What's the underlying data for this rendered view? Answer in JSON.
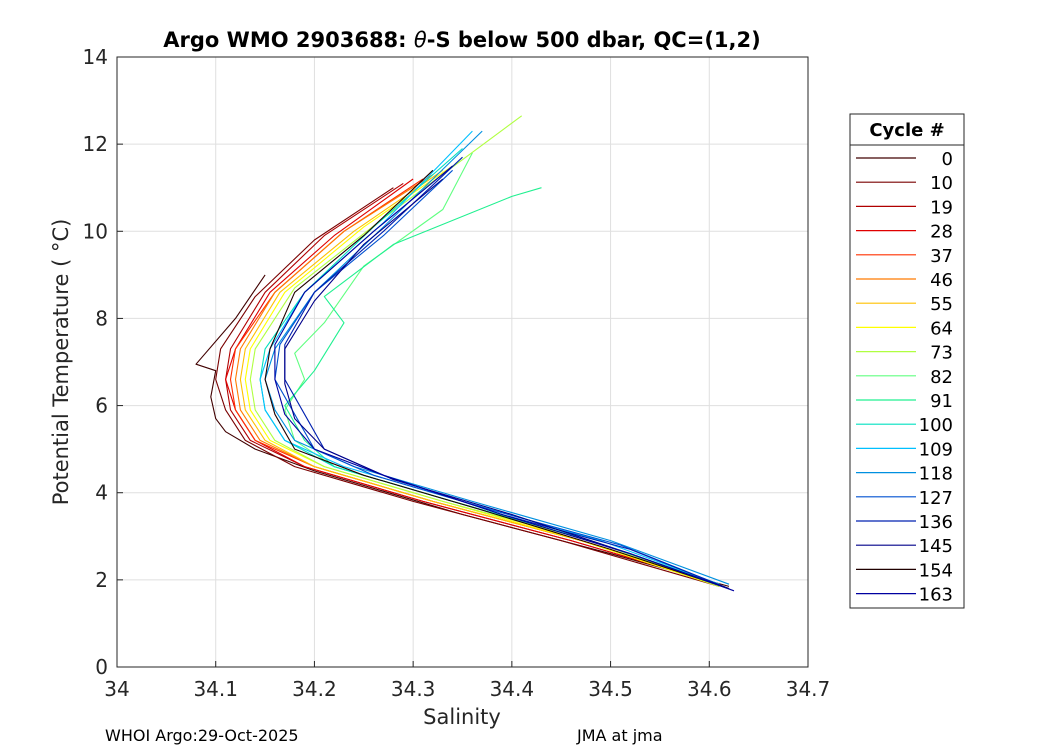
{
  "chart_data": {
    "type": "line",
    "title_prefix": "Argo WMO 2903688: ",
    "title_symbol": "θ",
    "title_suffix": "-S below 500 dbar,  QC=(1,2)",
    "xlabel": "Salinity",
    "ylabel": "Potential Temperature ( °C)",
    "xlim": [
      34.0,
      34.7
    ],
    "ylim": [
      0,
      14
    ],
    "xticks": [
      "34",
      "34.1",
      "34.2",
      "34.3",
      "34.4",
      "34.5",
      "34.6",
      "34.7"
    ],
    "yticks": [
      "0",
      "2",
      "4",
      "6",
      "8",
      "10",
      "12",
      "14"
    ],
    "grid": true,
    "legend_title": "Cycle #",
    "legend_position": "right",
    "legend": [
      {
        "label": "0",
        "color": "#400000"
      },
      {
        "label": "10",
        "color": "#7a0000"
      },
      {
        "label": "19",
        "color": "#b00000"
      },
      {
        "label": "28",
        "color": "#e00000"
      },
      {
        "label": "37",
        "color": "#ff3000"
      },
      {
        "label": "46",
        "color": "#ff7a00"
      },
      {
        "label": "55",
        "color": "#ffc000"
      },
      {
        "label": "64",
        "color": "#ffff00"
      },
      {
        "label": "73",
        "color": "#b0ff40"
      },
      {
        "label": "82",
        "color": "#60ff80"
      },
      {
        "label": "91",
        "color": "#20f090"
      },
      {
        "label": "100",
        "color": "#00e0c0"
      },
      {
        "label": "109",
        "color": "#00c0ff"
      },
      {
        "label": "118",
        "color": "#0090e0"
      },
      {
        "label": "127",
        "color": "#0050d0"
      },
      {
        "label": "136",
        "color": "#0020b0"
      },
      {
        "label": "145",
        "color": "#00008a"
      },
      {
        "label": "154",
        "color": "#200000"
      },
      {
        "label": "163",
        "color": "#0000a0"
      }
    ],
    "series": [
      {
        "name": "0",
        "color": "#400000",
        "salinity": [
          34.62,
          34.5,
          34.35,
          34.2,
          34.14,
          34.11,
          34.1,
          34.095,
          34.1,
          34.08,
          34.12,
          34.15
        ],
        "theta": [
          1.85,
          2.6,
          3.5,
          4.5,
          5.0,
          5.4,
          5.7,
          6.2,
          6.8,
          6.95,
          8.0,
          9.0
        ]
      },
      {
        "name": "10",
        "color": "#7a0000",
        "salinity": [
          34.61,
          34.45,
          34.3,
          34.18,
          34.13,
          34.11,
          34.1,
          34.105,
          34.14,
          34.2,
          34.28
        ],
        "theta": [
          1.85,
          2.9,
          3.8,
          4.6,
          5.2,
          5.9,
          6.6,
          7.3,
          8.5,
          9.8,
          11.0
        ]
      },
      {
        "name": "19",
        "color": "#b00000",
        "salinity": [
          34.61,
          34.46,
          34.31,
          34.19,
          34.135,
          34.115,
          34.11,
          34.115,
          34.15,
          34.21,
          34.29
        ],
        "theta": [
          1.9,
          2.9,
          3.8,
          4.6,
          5.2,
          5.9,
          6.6,
          7.3,
          8.6,
          9.9,
          11.1
        ]
      },
      {
        "name": "28",
        "color": "#e00000",
        "salinity": [
          34.61,
          34.46,
          34.31,
          34.19,
          34.14,
          34.12,
          34.11,
          34.12,
          34.155,
          34.22,
          34.3
        ],
        "theta": [
          1.9,
          2.9,
          3.8,
          4.6,
          5.2,
          5.9,
          6.6,
          7.3,
          8.6,
          9.9,
          11.2
        ]
      },
      {
        "name": "37",
        "color": "#ff3000",
        "salinity": [
          34.61,
          34.47,
          34.32,
          34.2,
          34.14,
          34.12,
          34.115,
          34.12,
          34.16,
          34.23,
          34.31
        ],
        "theta": [
          1.9,
          2.9,
          3.8,
          4.6,
          5.2,
          5.9,
          6.6,
          7.3,
          8.6,
          10.0,
          11.2
        ]
      },
      {
        "name": "46",
        "color": "#ff7a00",
        "salinity": [
          34.61,
          34.47,
          34.32,
          34.2,
          34.145,
          34.125,
          34.12,
          34.125,
          34.16,
          34.23,
          34.32
        ],
        "theta": [
          1.9,
          2.9,
          3.8,
          4.6,
          5.2,
          5.9,
          6.6,
          7.3,
          8.6,
          10.0,
          11.3
        ]
      },
      {
        "name": "55",
        "color": "#ffc000",
        "salinity": [
          34.61,
          34.47,
          34.32,
          34.2,
          34.15,
          34.13,
          34.125,
          34.13,
          34.165,
          34.24,
          34.33
        ],
        "theta": [
          1.85,
          2.9,
          3.8,
          4.6,
          5.2,
          5.9,
          6.6,
          7.3,
          8.6,
          10.0,
          11.4
        ]
      },
      {
        "name": "64",
        "color": "#ffff00",
        "salinity": [
          34.61,
          34.47,
          34.33,
          34.21,
          34.155,
          34.135,
          34.13,
          34.135,
          34.17,
          34.25,
          34.34
        ],
        "theta": [
          1.85,
          2.9,
          3.8,
          4.6,
          5.2,
          5.9,
          6.6,
          7.3,
          8.6,
          10.1,
          11.5
        ]
      },
      {
        "name": "73",
        "color": "#b0ff40",
        "salinity": [
          34.61,
          34.48,
          34.33,
          34.21,
          34.16,
          34.14,
          34.135,
          34.14,
          34.18,
          34.27,
          34.41
        ],
        "theta": [
          1.85,
          2.9,
          3.8,
          4.6,
          5.2,
          5.9,
          6.6,
          7.3,
          8.7,
          10.3,
          12.65
        ]
      },
      {
        "name": "82",
        "color": "#60ff80",
        "salinity": [
          34.61,
          34.48,
          34.34,
          34.22,
          34.18,
          34.17,
          34.19,
          34.18,
          34.21,
          34.25,
          34.33,
          34.36
        ],
        "theta": [
          1.9,
          2.9,
          3.8,
          4.6,
          5.2,
          5.9,
          6.6,
          7.2,
          7.9,
          9.2,
          10.5,
          11.8
        ]
      },
      {
        "name": "91",
        "color": "#20f090",
        "salinity": [
          34.61,
          34.48,
          34.34,
          34.22,
          34.19,
          34.17,
          34.2,
          34.23,
          34.21,
          34.28,
          34.4,
          34.43
        ],
        "theta": [
          1.9,
          2.9,
          3.8,
          4.6,
          5.2,
          6.0,
          6.8,
          7.9,
          8.5,
          9.7,
          10.8,
          11.0
        ]
      },
      {
        "name": "100",
        "color": "#00e0c0",
        "salinity": [
          34.61,
          34.48,
          34.34,
          34.22,
          34.17,
          34.15,
          34.145,
          34.15,
          34.19,
          34.26,
          34.35
        ],
        "theta": [
          1.9,
          2.9,
          3.8,
          4.6,
          5.2,
          5.9,
          6.6,
          7.3,
          8.6,
          10.1,
          11.9
        ]
      },
      {
        "name": "109",
        "color": "#00c0ff",
        "salinity": [
          34.61,
          34.49,
          34.35,
          34.23,
          34.17,
          34.15,
          34.145,
          34.155,
          34.19,
          34.27,
          34.36
        ],
        "theta": [
          1.9,
          2.9,
          3.8,
          4.6,
          5.2,
          5.9,
          6.6,
          7.3,
          8.6,
          10.2,
          12.3
        ]
      },
      {
        "name": "118",
        "color": "#0090e0",
        "salinity": [
          34.62,
          34.5,
          34.36,
          34.24,
          34.18,
          34.16,
          34.15,
          34.16,
          34.2,
          34.27,
          34.37
        ],
        "theta": [
          1.9,
          2.9,
          3.8,
          4.6,
          5.2,
          5.9,
          6.6,
          7.3,
          8.6,
          10.1,
          12.3
        ]
      },
      {
        "name": "127",
        "color": "#0050d0",
        "salinity": [
          34.62,
          34.51,
          34.38,
          34.26,
          34.2,
          34.18,
          34.16,
          34.165,
          34.2,
          34.27,
          34.34
        ],
        "theta": [
          1.8,
          2.8,
          3.6,
          4.4,
          5.0,
          5.8,
          6.6,
          7.4,
          8.6,
          9.9,
          11.4
        ]
      },
      {
        "name": "136",
        "color": "#0020b0",
        "salinity": [
          34.62,
          34.52,
          34.39,
          34.27,
          34.21,
          34.19,
          34.17,
          34.17,
          34.2,
          34.27,
          34.35
        ],
        "theta": [
          1.8,
          2.7,
          3.5,
          4.4,
          5.0,
          5.8,
          6.6,
          7.4,
          8.6,
          10.0,
          11.7
        ]
      },
      {
        "name": "145",
        "color": "#00008a",
        "salinity": [
          34.62,
          34.52,
          34.4,
          34.28,
          34.21,
          34.18,
          34.17,
          34.17,
          34.2,
          34.25,
          34.33
        ],
        "theta": [
          1.8,
          2.6,
          3.5,
          4.3,
          5.0,
          5.7,
          6.5,
          7.3,
          8.4,
          9.7,
          11.2
        ]
      },
      {
        "name": "154",
        "color": "#200000",
        "salinity": [
          34.62,
          34.5,
          34.37,
          34.25,
          34.18,
          34.16,
          34.15,
          34.155,
          34.18,
          34.25,
          34.32
        ],
        "theta": [
          1.8,
          2.7,
          3.6,
          4.4,
          5.0,
          5.8,
          6.6,
          7.3,
          8.6,
          9.9,
          11.4
        ]
      },
      {
        "name": "163",
        "color": "#0000a0",
        "salinity": [
          34.625,
          34.52,
          34.39,
          34.27,
          34.2,
          34.17,
          34.16,
          34.16,
          34.19,
          34.26,
          34.34
        ],
        "theta": [
          1.75,
          2.6,
          3.5,
          4.4,
          5.0,
          5.8,
          6.6,
          7.4,
          8.6,
          10.0,
          11.5
        ]
      }
    ]
  },
  "footer": {
    "left": "WHOI Argo:29-Oct-2025",
    "right": "JMA at jma"
  }
}
